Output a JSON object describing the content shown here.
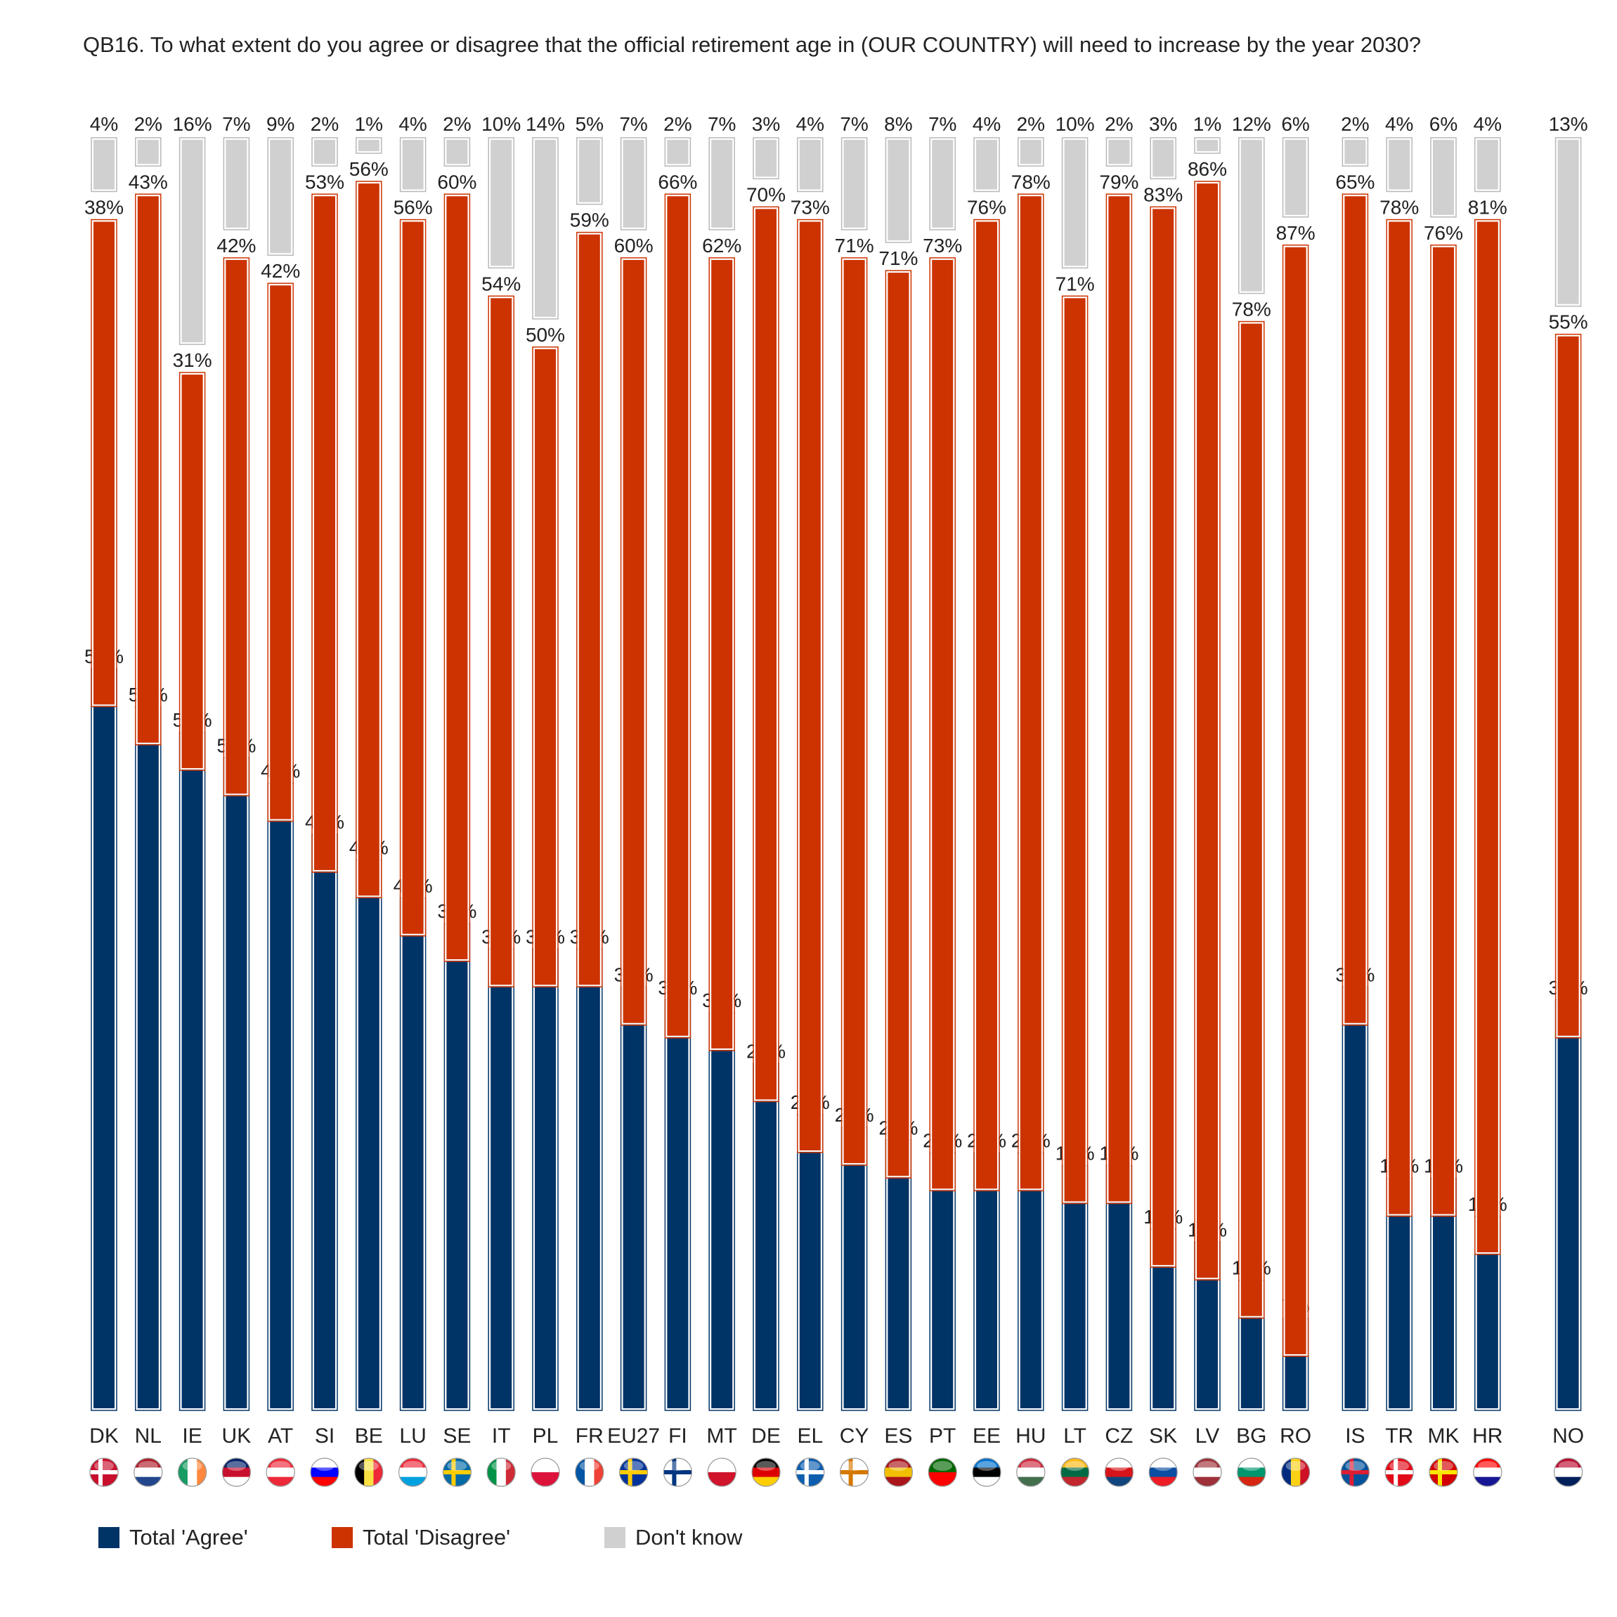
{
  "title": "QB16. To what extent do you agree or disagree that the official retirement age in (OUR COUNTRY) will need to increase by the year 2030?",
  "colors": {
    "agree": "#003366",
    "disagree": "#cc3300",
    "dont_know": "#d0d0d0"
  },
  "legend": [
    {
      "label": "Total 'Agree'",
      "color": "#003366"
    },
    {
      "label": "Total 'Disagree'",
      "color": "#cc3300"
    },
    {
      "label": "Don't know",
      "color": "#d0d0d0"
    }
  ],
  "chart_data": {
    "type": "bar",
    "stacked": false,
    "categories": [
      "DK",
      "NL",
      "IE",
      "UK",
      "AT",
      "SI",
      "BE",
      "LU",
      "SE",
      "IT",
      "PL",
      "FR",
      "EU27",
      "FI",
      "MT",
      "DE",
      "EL",
      "CY",
      "ES",
      "PT",
      "EE",
      "HU",
      "LT",
      "CZ",
      "SK",
      "LV",
      "BG",
      "RO",
      "IS",
      "TR",
      "MK",
      "HR",
      "NO"
    ],
    "groups": [
      {
        "categories": [
          "DK",
          "NL",
          "IE",
          "UK",
          "AT",
          "SI",
          "BE",
          "LU",
          "SE",
          "IT",
          "PL",
          "FR",
          "EU27",
          "FI",
          "MT",
          "DE",
          "EL",
          "CY",
          "ES",
          "PT",
          "EE",
          "HU",
          "LT",
          "CZ",
          "SK",
          "LV",
          "BG",
          "RO"
        ]
      },
      {
        "categories": [
          "IS",
          "TR",
          "MK",
          "HR"
        ]
      },
      {
        "categories": [
          "NO"
        ]
      }
    ],
    "flags": [
      "dk-flag-icon",
      "nl-flag-icon",
      "ie-flag-icon",
      "uk-flag-icon",
      "at-flag-icon",
      "si-flag-icon",
      "be-flag-icon",
      "lu-flag-icon",
      "se-flag-icon",
      "it-flag-icon",
      "pl-flag-icon",
      "fr-flag-icon",
      "eu-flag-icon",
      "fi-flag-icon",
      "mt-flag-icon",
      "de-flag-icon",
      "el-flag-icon",
      "cy-flag-icon",
      "es-flag-icon",
      "pt-flag-icon",
      "ee-flag-icon",
      "hu-flag-icon",
      "lt-flag-icon",
      "cz-flag-icon",
      "sk-flag-icon",
      "lv-flag-icon",
      "bg-flag-icon",
      "ro-flag-icon",
      "is-flag-icon",
      "tr-flag-icon",
      "mk-flag-icon",
      "hr-flag-icon",
      "no-flag-icon"
    ],
    "series": [
      {
        "name": "Total 'Agree'",
        "values": [
          58,
          55,
          53,
          51,
          49,
          45,
          43,
          40,
          38,
          36,
          36,
          36,
          33,
          32,
          31,
          27,
          23,
          22,
          21,
          20,
          20,
          20,
          19,
          19,
          14,
          13,
          10,
          7,
          33,
          18,
          18,
          15,
          32
        ]
      },
      {
        "name": "Total 'Disagree'",
        "values": [
          38,
          43,
          31,
          42,
          42,
          53,
          56,
          56,
          60,
          54,
          50,
          59,
          60,
          66,
          62,
          70,
          73,
          71,
          71,
          73,
          76,
          78,
          71,
          79,
          83,
          86,
          78,
          87,
          65,
          78,
          76,
          81,
          55
        ]
      },
      {
        "name": "Don't know",
        "values": [
          4,
          2,
          16,
          7,
          9,
          2,
          1,
          4,
          2,
          10,
          14,
          5,
          7,
          2,
          7,
          3,
          4,
          7,
          8,
          7,
          4,
          2,
          10,
          2,
          3,
          1,
          12,
          6,
          2,
          4,
          6,
          4,
          13
        ]
      }
    ],
    "unit": "%",
    "legend_position": "bottom-left",
    "grid": false
  }
}
